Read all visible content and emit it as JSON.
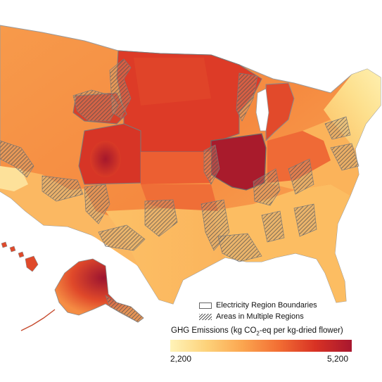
{
  "legend": {
    "boundaries_label": "Electricity Region Boundaries",
    "multiple_label": "Areas in Multiple Regions"
  },
  "colorbar": {
    "title_pre": "GHG Emissions (kg CO",
    "title_sub": "2",
    "title_post": "-eq per kg-dried flower)",
    "min_label": "2,200",
    "max_label": "5,200",
    "min_value": 2200,
    "max_value": 5200,
    "colors": [
      "#fff3b8",
      "#fdd27a",
      "#fba54f",
      "#f26d33",
      "#d83224",
      "#a8172f"
    ]
  }
}
